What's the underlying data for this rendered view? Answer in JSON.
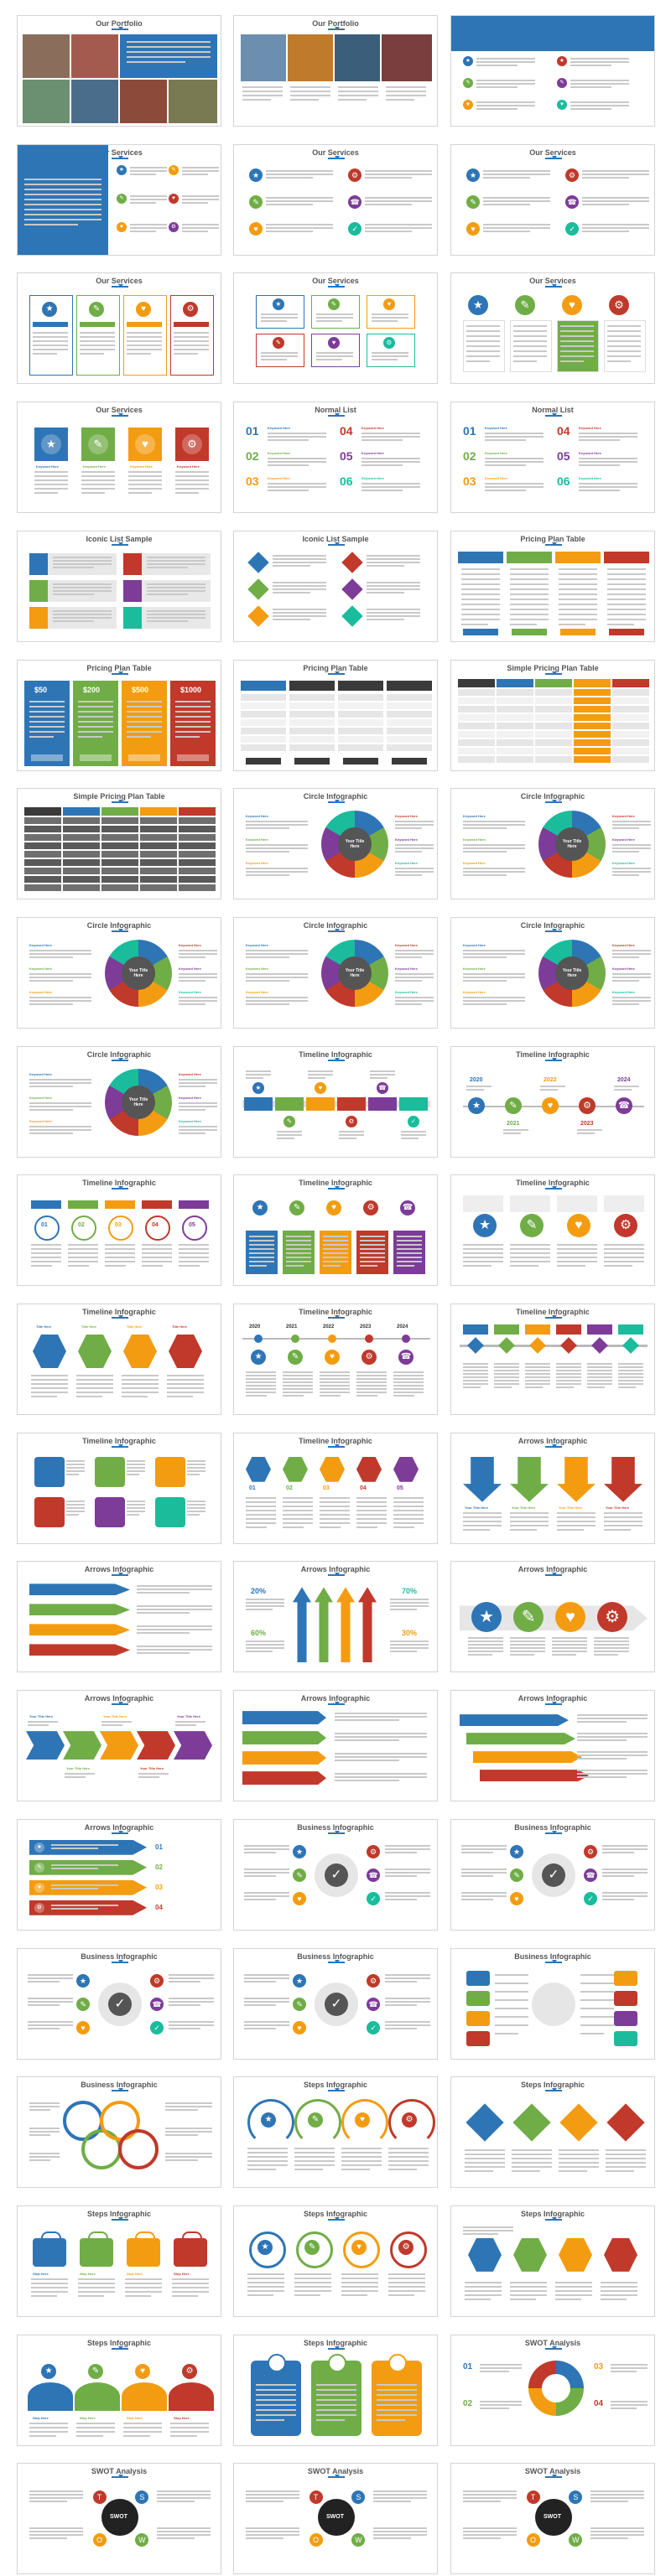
{
  "colors": {
    "blue": "#2e75b6",
    "green": "#70ad47",
    "orange": "#f39c12",
    "red": "#c0392b",
    "purple": "#7d3c98",
    "teal": "#1abc9c",
    "gray": "#7f7f7f",
    "dark_teal": "#2a6f77"
  },
  "slides": [
    {
      "title": "Our Portfolio",
      "kind": "portfolio1"
    },
    {
      "title": "Our Portfolio",
      "kind": "portfolio2"
    },
    {
      "title": "Our Services",
      "kind": "services-banner"
    },
    {
      "title": "Our Services",
      "kind": "services-sidebar"
    },
    {
      "title": "Our Services",
      "kind": "services-icons6"
    },
    {
      "title": "Our Services",
      "kind": "services-icons6"
    },
    {
      "title": "Our Services",
      "kind": "services-cols4"
    },
    {
      "title": "Our Services",
      "kind": "services-boxes"
    },
    {
      "title": "Our Services",
      "kind": "services-circles"
    },
    {
      "title": "Our Services",
      "kind": "services-squares"
    },
    {
      "title": "Normal List",
      "kind": "numbered"
    },
    {
      "title": "Normal List",
      "kind": "numbered"
    },
    {
      "title": "Iconic List Sample",
      "kind": "iconic-grid"
    },
    {
      "title": "Iconic List Sample",
      "kind": "iconic-diamond"
    },
    {
      "title": "Pricing Plan Table",
      "kind": "pricing-cols"
    },
    {
      "title": "Pricing Plan Table",
      "kind": "pricing-cards"
    },
    {
      "title": "Pricing Plan Table",
      "kind": "pricing-simple"
    },
    {
      "title": "Simple Pricing Plan Table",
      "kind": "pricing-table"
    },
    {
      "title": "Simple Pricing Plan Table",
      "kind": "pricing-table-dark"
    },
    {
      "title": "Circle Infographic",
      "kind": "circle"
    },
    {
      "title": "Circle Infographic",
      "kind": "circle"
    },
    {
      "title": "Circle Infographic",
      "kind": "circle"
    },
    {
      "title": "Circle Infographic",
      "kind": "circle"
    },
    {
      "title": "Circle Infographic",
      "kind": "circle"
    },
    {
      "title": "Circle Infographic",
      "kind": "circle"
    },
    {
      "title": "Timeline Infographic",
      "kind": "timeline-bar"
    },
    {
      "title": "Timeline Infographic",
      "kind": "timeline-years"
    },
    {
      "title": "Timeline Infographic",
      "kind": "timeline-circles"
    },
    {
      "title": "Timeline Infographic",
      "kind": "timeline-boxes"
    },
    {
      "title": "Timeline Infographic",
      "kind": "timeline-icons"
    },
    {
      "title": "Timeline Infographic",
      "kind": "timeline-hex"
    },
    {
      "title": "Timeline Infographic",
      "kind": "timeline-dots"
    },
    {
      "title": "Timeline Infographic",
      "kind": "timeline-diamonds"
    },
    {
      "title": "Timeline Infographic",
      "kind": "timeline-shapes"
    },
    {
      "title": "Timeline Infographic",
      "kind": "timeline-hex2"
    },
    {
      "title": "Arrows Infographic",
      "kind": "arrows-down"
    },
    {
      "title": "Arrows Infographic",
      "kind": "arrows-right"
    },
    {
      "title": "Arrows Infographic",
      "kind": "arrows-up"
    },
    {
      "title": "Arrows Infographic",
      "kind": "arrows-circles"
    },
    {
      "title": "Arrows Infographic",
      "kind": "arrows-chevron"
    },
    {
      "title": "Arrows Infographic",
      "kind": "arrows-ribbons"
    },
    {
      "title": "Arrows Infographic",
      "kind": "arrows-3d"
    },
    {
      "title": "Arrows Infographic",
      "kind": "arrows-ribbons2"
    },
    {
      "title": "Business Infographic",
      "kind": "business-center"
    },
    {
      "title": "Business Infographic",
      "kind": "business-center"
    },
    {
      "title": "Business Infographic",
      "kind": "business-center"
    },
    {
      "title": "Business Infographic",
      "kind": "business-center"
    },
    {
      "title": "Business Infographic",
      "kind": "business-grid"
    },
    {
      "title": "Business Infographic",
      "kind": "business-rings"
    },
    {
      "title": "Steps Infographic",
      "kind": "steps-arcs"
    },
    {
      "title": "Steps Infographic",
      "kind": "steps-diamonds"
    },
    {
      "title": "Steps Infographic",
      "kind": "steps-bags"
    },
    {
      "title": "Steps Infographic",
      "kind": "steps-circles"
    },
    {
      "title": "Steps Infographic",
      "kind": "steps-hex"
    },
    {
      "title": "Steps Infographic",
      "kind": "steps-waves"
    },
    {
      "title": "Steps Infographic",
      "kind": "steps-cards"
    },
    {
      "title": "SWOT Analysis",
      "kind": "swot-ring"
    },
    {
      "title": "SWOT Analysis",
      "kind": "swot-center"
    },
    {
      "title": "SWOT Analysis",
      "kind": "swot-center"
    },
    {
      "title": "SWOT Analysis",
      "kind": "swot-center"
    }
  ],
  "labels": {
    "your_title": "Your Title Here",
    "step_here": "Step Here",
    "keyword": "Keyword Here",
    "title_here": "Title Here",
    "swot": "SWOT",
    "nums6": [
      "01",
      "02",
      "03",
      "04",
      "05",
      "06"
    ],
    "years": [
      "2020",
      "2021",
      "2022",
      "2023",
      "2024"
    ],
    "percents": [
      "20%",
      "70%",
      "60%",
      "30%"
    ],
    "plans": [
      "STANDARD",
      "PROFESSIONAL",
      "BUSINESS",
      "UNLIMITED"
    ],
    "prices": [
      "$50",
      "$200",
      "$500",
      "$1000"
    ],
    "buy_now": "BUY NOW",
    "swot_letters": [
      "S",
      "W",
      "O",
      "T"
    ]
  }
}
